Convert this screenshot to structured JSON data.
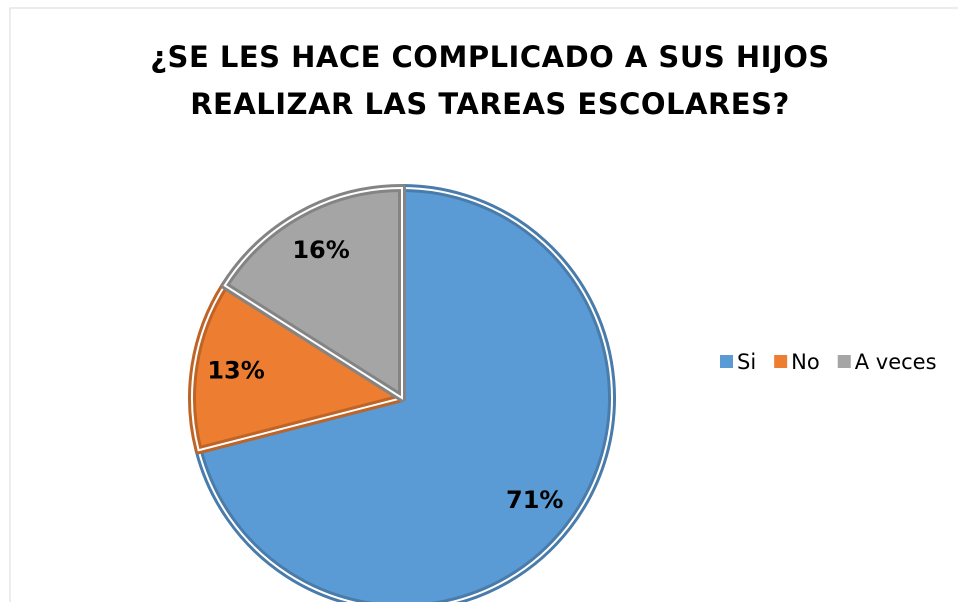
{
  "chart_data": {
    "type": "pie",
    "title": "¿SE LES HACE COMPLICADO A SUS HIJOS REALIZAR LAS TAREAS ESCOLARES?",
    "categories": [
      "Si",
      "No",
      "A veces"
    ],
    "values": [
      71,
      13,
      16
    ],
    "value_labels": [
      "71%",
      "13%",
      "16%"
    ],
    "colors": [
      "#5b9bd5",
      "#ed7d31",
      "#a5a5a5"
    ],
    "legend": "right"
  }
}
